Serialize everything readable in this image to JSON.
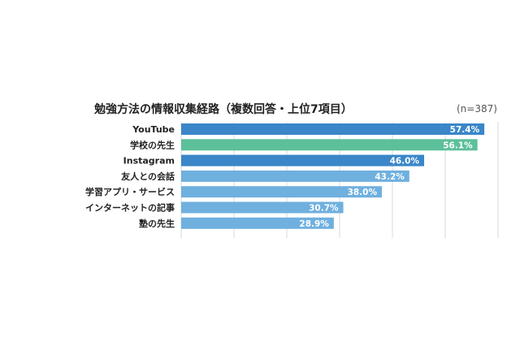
{
  "chart_data": {
    "type": "bar",
    "orientation": "horizontal",
    "title": "勉強方法の情報収集経路（複数回答・上位7項目）",
    "sample_size": "(n=387)",
    "categories": [
      "YouTube",
      "学校の先生",
      "Instagram",
      "友人との会話",
      "学習アプリ・サービス",
      "インターネットの記事",
      "塾の先生"
    ],
    "values": [
      57.4,
      56.1,
      46.0,
      43.2,
      38.0,
      30.7,
      28.9
    ],
    "value_labels": [
      "57.4%",
      "56.1%",
      "46.0%",
      "43.2%",
      "38.0%",
      "30.7%",
      "28.9%"
    ],
    "colors": [
      "#3a86c8",
      "#5cc09a",
      "#3a86c8",
      "#6fb0df",
      "#6fb0df",
      "#6fb0df",
      "#6fb0df"
    ],
    "xlim": [
      0,
      60
    ],
    "grid": true,
    "xlabel": "",
    "ylabel": ""
  }
}
